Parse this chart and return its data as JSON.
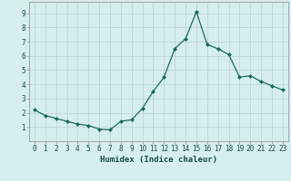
{
  "x": [
    0,
    1,
    2,
    3,
    4,
    5,
    6,
    7,
    8,
    9,
    10,
    11,
    12,
    13,
    14,
    15,
    16,
    17,
    18,
    19,
    20,
    21,
    22,
    23
  ],
  "y": [
    2.2,
    1.8,
    1.6,
    1.4,
    1.2,
    1.1,
    0.85,
    0.8,
    1.4,
    1.5,
    2.3,
    3.5,
    4.5,
    6.5,
    7.2,
    9.1,
    6.8,
    6.5,
    6.1,
    4.5,
    4.6,
    4.2,
    3.9,
    3.6
  ],
  "xlabel": "Humidex (Indice chaleur)",
  "xlim": [
    -0.5,
    23.5
  ],
  "ylim": [
    0,
    9.8
  ],
  "yticks": [
    1,
    2,
    3,
    4,
    5,
    6,
    7,
    8,
    9
  ],
  "xticks": [
    0,
    1,
    2,
    3,
    4,
    5,
    6,
    7,
    8,
    9,
    10,
    11,
    12,
    13,
    14,
    15,
    16,
    17,
    18,
    19,
    20,
    21,
    22,
    23
  ],
  "line_color": "#1a6b5a",
  "marker": "D",
  "marker_size": 2.0,
  "bg_color": "#d6eeee",
  "grid_color": "#b8d0d0",
  "tick_fontsize": 5.5,
  "label_fontsize": 6.5
}
